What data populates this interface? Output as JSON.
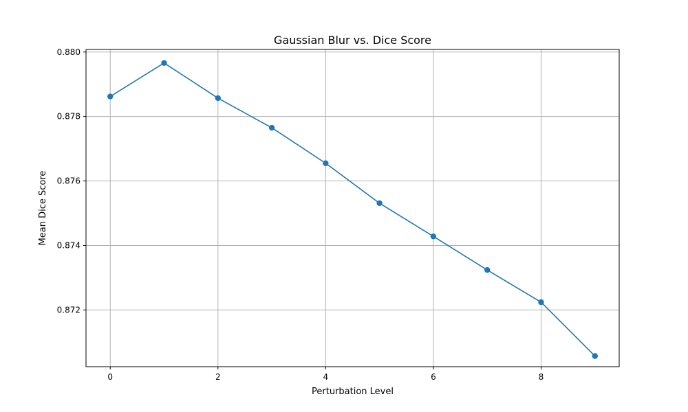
{
  "chart_data": {
    "type": "line",
    "title": "Gaussian Blur vs. Dice Score",
    "xlabel": "Perturbation Level",
    "ylabel": "Mean Dice Score",
    "x": [
      0,
      1,
      2,
      3,
      4,
      5,
      6,
      7,
      8,
      9
    ],
    "series": [
      {
        "values": [
          0.87862,
          0.87966,
          0.87857,
          0.87765,
          0.87655,
          0.87531,
          0.87428,
          0.87324,
          0.87224,
          0.87057
        ],
        "color": "#1f77b4",
        "marker": "circle"
      }
    ],
    "xlim": [
      -0.45,
      9.45
    ],
    "ylim": [
      0.87024,
      0.88008
    ],
    "xticks": [
      0,
      2,
      4,
      6,
      8
    ],
    "xtick_labels": [
      "0",
      "2",
      "4",
      "6",
      "8"
    ],
    "yticks": [
      0.872,
      0.874,
      0.876,
      0.878,
      0.88
    ],
    "ytick_labels": [
      "0.872",
      "0.874",
      "0.876",
      "0.878",
      "0.880"
    ],
    "grid": true,
    "legend": false
  }
}
